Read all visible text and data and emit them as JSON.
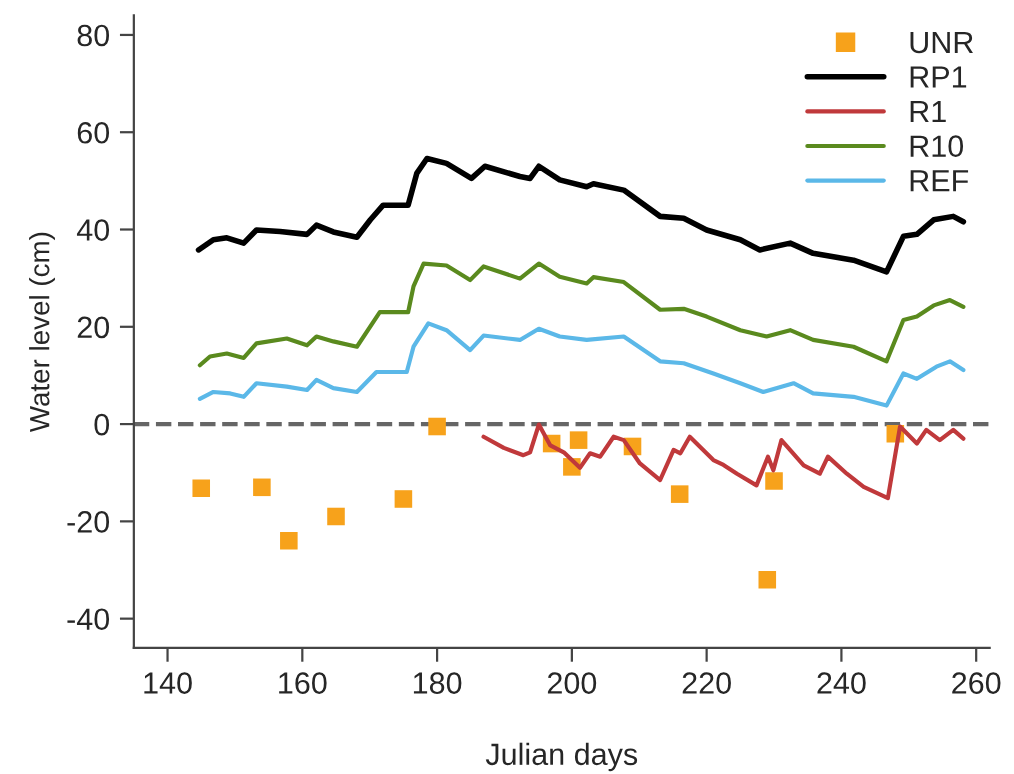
{
  "chart_data": {
    "type": "line",
    "xlabel": "Julian days",
    "ylabel": "Water level (cm)",
    "xlim": [
      135,
      262
    ],
    "ylim": [
      -46,
      84
    ],
    "xticks": [
      140,
      160,
      180,
      200,
      220,
      240,
      260
    ],
    "yticks": [
      -40,
      -20,
      0,
      20,
      40,
      60,
      80
    ],
    "grid": false,
    "legend": "top right",
    "ref_lines": [
      {
        "axis": "y",
        "value": 0,
        "color": "#666666",
        "line_style": "dashed"
      }
    ],
    "series": [
      {
        "name": "UNR",
        "type": "scatter",
        "marker": "square",
        "color": "#f7a21b",
        "x": [
          145,
          154,
          158,
          165,
          175,
          180,
          197,
          200,
          201,
          209,
          216,
          229,
          230,
          248
        ],
        "values": [
          -13.2,
          -13,
          -24,
          -19,
          -15.4,
          -0.5,
          -4,
          -8.8,
          -3.3,
          -4.6,
          -14.4,
          -32,
          -11.7,
          -2
        ]
      },
      {
        "name": "RP1",
        "color": "#000000",
        "x": [
          144.6,
          146.8,
          148.8,
          151.3,
          153.2,
          156.7,
          160.7,
          162.1,
          164.6,
          168.1,
          170.1,
          172,
          175.7,
          177,
          178.5,
          181.4,
          185.1,
          187.1,
          192.3,
          193.8,
          195.1,
          198.2,
          202.2,
          203.2,
          207.7,
          213.1,
          216.6,
          220,
          225,
          227.9,
          232.4,
          235.8,
          241.8,
          246.7,
          249.2,
          251.2,
          253.7,
          256.6,
          258.1
        ],
        "values": [
          35.8,
          37.9,
          38.3,
          37.2,
          39.9,
          39.6,
          39,
          40.9,
          39.5,
          38.4,
          42,
          45,
          45,
          51.6,
          54.6,
          53.6,
          50.5,
          53,
          50.9,
          50.5,
          53,
          50.2,
          48.8,
          49.4,
          48.1,
          42.7,
          42.3,
          39.9,
          37.9,
          35.8,
          37.2,
          35.1,
          33.7,
          31.3,
          38.6,
          39,
          42,
          42.7,
          41.6
        ]
      },
      {
        "name": "R1",
        "color": "#c0393b",
        "x": [
          186.9,
          189.9,
          192.8,
          193.8,
          195.1,
          196.8,
          198.8,
          201.2,
          202.7,
          204.2,
          206.2,
          207.7,
          210.1,
          213.1,
          215.1,
          216.1,
          217.5,
          221,
          222.5,
          224.5,
          227.4,
          229.1,
          229.9,
          231.1,
          234.4,
          236.8,
          238,
          240.8,
          243.3,
          246.9,
          248.7,
          251.2,
          252.6,
          254.6,
          256.6,
          258.1
        ],
        "values": [
          -2.6,
          -4.9,
          -6.4,
          -5.8,
          -0.1,
          -4.4,
          -5.8,
          -9,
          -6,
          -6.7,
          -2.6,
          -3.3,
          -8.1,
          -11.5,
          -5.3,
          -6,
          -2.6,
          -7.4,
          -8.4,
          -10.2,
          -12.6,
          -6.7,
          -9.5,
          -3.3,
          -8.5,
          -10.2,
          -6.7,
          -10.2,
          -12.9,
          -15.2,
          -0.5,
          -4,
          -1.2,
          -3.3,
          -1.2,
          -3
        ]
      },
      {
        "name": "R10",
        "color": "#5a8a1e",
        "x": [
          144.8,
          146.3,
          148.8,
          151.3,
          153.2,
          157.7,
          160.7,
          162.1,
          164.6,
          168.1,
          171.5,
          175.7,
          176.5,
          178,
          181.4,
          184.9,
          186.9,
          192.3,
          195.1,
          198.2,
          202.2,
          203.2,
          207.7,
          213.1,
          216.6,
          220,
          225,
          228.9,
          232.4,
          235.8,
          241.8,
          246.7,
          249.2,
          251.2,
          253.7,
          256.1,
          258.1
        ],
        "values": [
          12.1,
          13.9,
          14.5,
          13.6,
          16.6,
          17.6,
          16.2,
          18,
          17,
          15.9,
          23,
          23,
          28.3,
          33,
          32.6,
          29.6,
          32.4,
          29.9,
          33,
          30.3,
          28.9,
          30.2,
          29.2,
          23.5,
          23.7,
          22.1,
          19.3,
          18,
          19.3,
          17.3,
          15.9,
          12.9,
          21.4,
          22.1,
          24.4,
          25.5,
          24.1
        ]
      },
      {
        "name": "REF",
        "color": "#5bb8e8",
        "x": [
          144.8,
          146.8,
          149.3,
          151.3,
          153.2,
          157.7,
          160.7,
          162.1,
          164.6,
          168.1,
          171,
          175.5,
          176.5,
          178.7,
          181.4,
          184.9,
          186.9,
          192.3,
          195.1,
          198.2,
          202.2,
          207.7,
          213.1,
          216.6,
          221,
          225,
          228.4,
          232.9,
          235.8,
          241.8,
          246.7,
          249.2,
          251.2,
          254.1,
          256.1,
          258.1
        ],
        "values": [
          5.2,
          6.6,
          6.3,
          5.6,
          8.4,
          7.7,
          7,
          9.1,
          7.4,
          6.6,
          10.7,
          10.7,
          15.9,
          20.7,
          19.3,
          15.2,
          18.2,
          17.3,
          19.6,
          18,
          17.3,
          18,
          12.9,
          12.5,
          10.4,
          8.4,
          6.6,
          8.4,
          6.3,
          5.6,
          3.8,
          10.4,
          9.3,
          11.8,
          12.9,
          11.1
        ]
      }
    ]
  }
}
